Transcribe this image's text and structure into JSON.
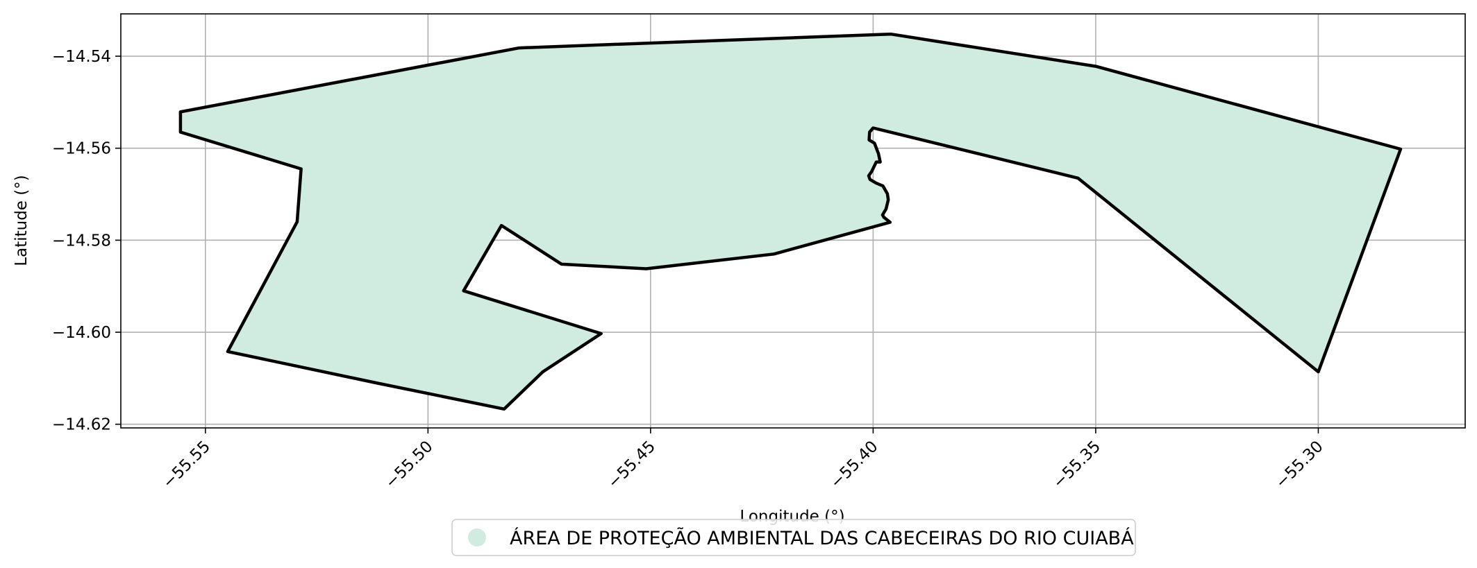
{
  "chart_data": {
    "type": "area",
    "xlabel": "Longitude (°)",
    "ylabel": "Latitude (°)",
    "xlim": [
      -55.569,
      -55.267
    ],
    "ylim": [
      -14.6208,
      -14.5308
    ],
    "xticks": [
      -55.55,
      -55.5,
      -55.45,
      -55.4,
      -55.35,
      -55.3
    ],
    "xtick_labels": [
      "−55.55",
      "−55.50",
      "−55.45",
      "−55.40",
      "−55.35",
      "−55.30"
    ],
    "yticks": [
      -14.54,
      -14.56,
      -14.58,
      -14.6,
      -14.62
    ],
    "ytick_labels": [
      "−14.54",
      "−14.56",
      "−14.58",
      "−14.60",
      "−14.62"
    ],
    "grid": true,
    "legend_position": "bottom-center",
    "colors": {
      "fill": "#d0ece0",
      "edge": "#000000",
      "grid": "#b0b0b0"
    },
    "series": [
      {
        "name": "ÁREA DE PROTEÇÃO AMBIENTAL DAS CABECEIRAS DO RIO CUIABÁ",
        "polygon": [
          [
            -55.5556,
            -14.5521
          ],
          [
            -55.4795,
            -14.5382
          ],
          [
            -55.396,
            -14.5352
          ],
          [
            -55.35,
            -14.5422
          ],
          [
            -55.2815,
            -14.5602
          ],
          [
            -55.3,
            -14.6086
          ],
          [
            -55.354,
            -14.5665
          ],
          [
            -55.4,
            -14.5556
          ],
          [
            -55.4008,
            -14.5565
          ],
          [
            -55.4009,
            -14.5582
          ],
          [
            -55.3997,
            -14.5589
          ],
          [
            -55.3988,
            -14.5612
          ],
          [
            -55.3984,
            -14.563
          ],
          [
            -55.3993,
            -14.563
          ],
          [
            -55.3998,
            -14.564
          ],
          [
            -55.4003,
            -14.565
          ],
          [
            -55.401,
            -14.566
          ],
          [
            -55.4007,
            -14.5668
          ],
          [
            -55.4,
            -14.5672
          ],
          [
            -55.3993,
            -14.5676
          ],
          [
            -55.3978,
            -14.5682
          ],
          [
            -55.3968,
            -14.5699
          ],
          [
            -55.3966,
            -14.5712
          ],
          [
            -55.3971,
            -14.5732
          ],
          [
            -55.3979,
            -14.5745
          ],
          [
            -55.3976,
            -14.575
          ],
          [
            -55.3962,
            -14.5761
          ],
          [
            -55.4223,
            -14.583
          ],
          [
            -55.451,
            -14.5862
          ],
          [
            -55.47,
            -14.5852
          ],
          [
            -55.4835,
            -14.5768
          ],
          [
            -55.492,
            -14.591
          ],
          [
            -55.4611,
            -14.6003
          ],
          [
            -55.4742,
            -14.6086
          ],
          [
            -55.4829,
            -14.6167
          ],
          [
            -55.5117,
            -14.611
          ],
          [
            -55.545,
            -14.6042
          ],
          [
            -55.5294,
            -14.576
          ],
          [
            -55.5285,
            -14.5645
          ],
          [
            -55.5556,
            -14.5565
          ]
        ]
      }
    ]
  }
}
